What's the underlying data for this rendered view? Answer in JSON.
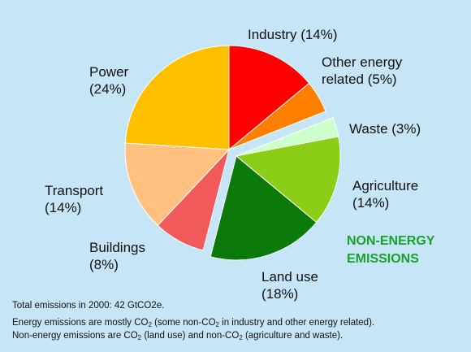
{
  "chart_data": {
    "type": "pie",
    "categories": [
      "Industry",
      "Other energy related",
      "Waste",
      "Agriculture",
      "Land use",
      "Buildings",
      "Transport",
      "Power"
    ],
    "values": [
      14,
      5,
      3,
      14,
      18,
      8,
      14,
      24
    ],
    "unit": "%",
    "colors": [
      "#ff0000",
      "#ff8000",
      "#ccffcc",
      "#8ccd18",
      "#0b7a0b",
      "#f05a5a",
      "#ffc080",
      "#ffc000"
    ],
    "exploded_group": [
      "Waste",
      "Agriculture",
      "Land use"
    ],
    "exploded_group_label": [
      "NON-ENERGY",
      "EMISSIONS"
    ],
    "labels": {
      "industry": [
        "Industry (14%)"
      ],
      "other_energy": [
        "Other energy",
        "related (5%)"
      ],
      "waste": [
        "Waste (3%)"
      ],
      "agriculture": [
        "Agriculture",
        "(14%)"
      ],
      "land_use": [
        "Land use",
        "(18%)"
      ],
      "buildings": [
        "Buildings",
        "(8%)"
      ],
      "transport": [
        "Transport",
        "(14%)"
      ],
      "power": [
        "Power",
        "(24%)"
      ]
    }
  },
  "footnotes": {
    "total": "Total emissions in 2000: 42 GtCO2e.",
    "line1_a": "Energy emissions are mostly CO",
    "line1_b": "2",
    "line1_c": " (some non-CO",
    "line1_d": "2",
    "line1_e": " in industry and other energy related).",
    "line2_a": "Non-energy emissions are CO",
    "line2_b": "2",
    "line2_c": " (land use) and non-CO",
    "line2_d": "2",
    "line2_e": " (agriculture and waste)."
  }
}
